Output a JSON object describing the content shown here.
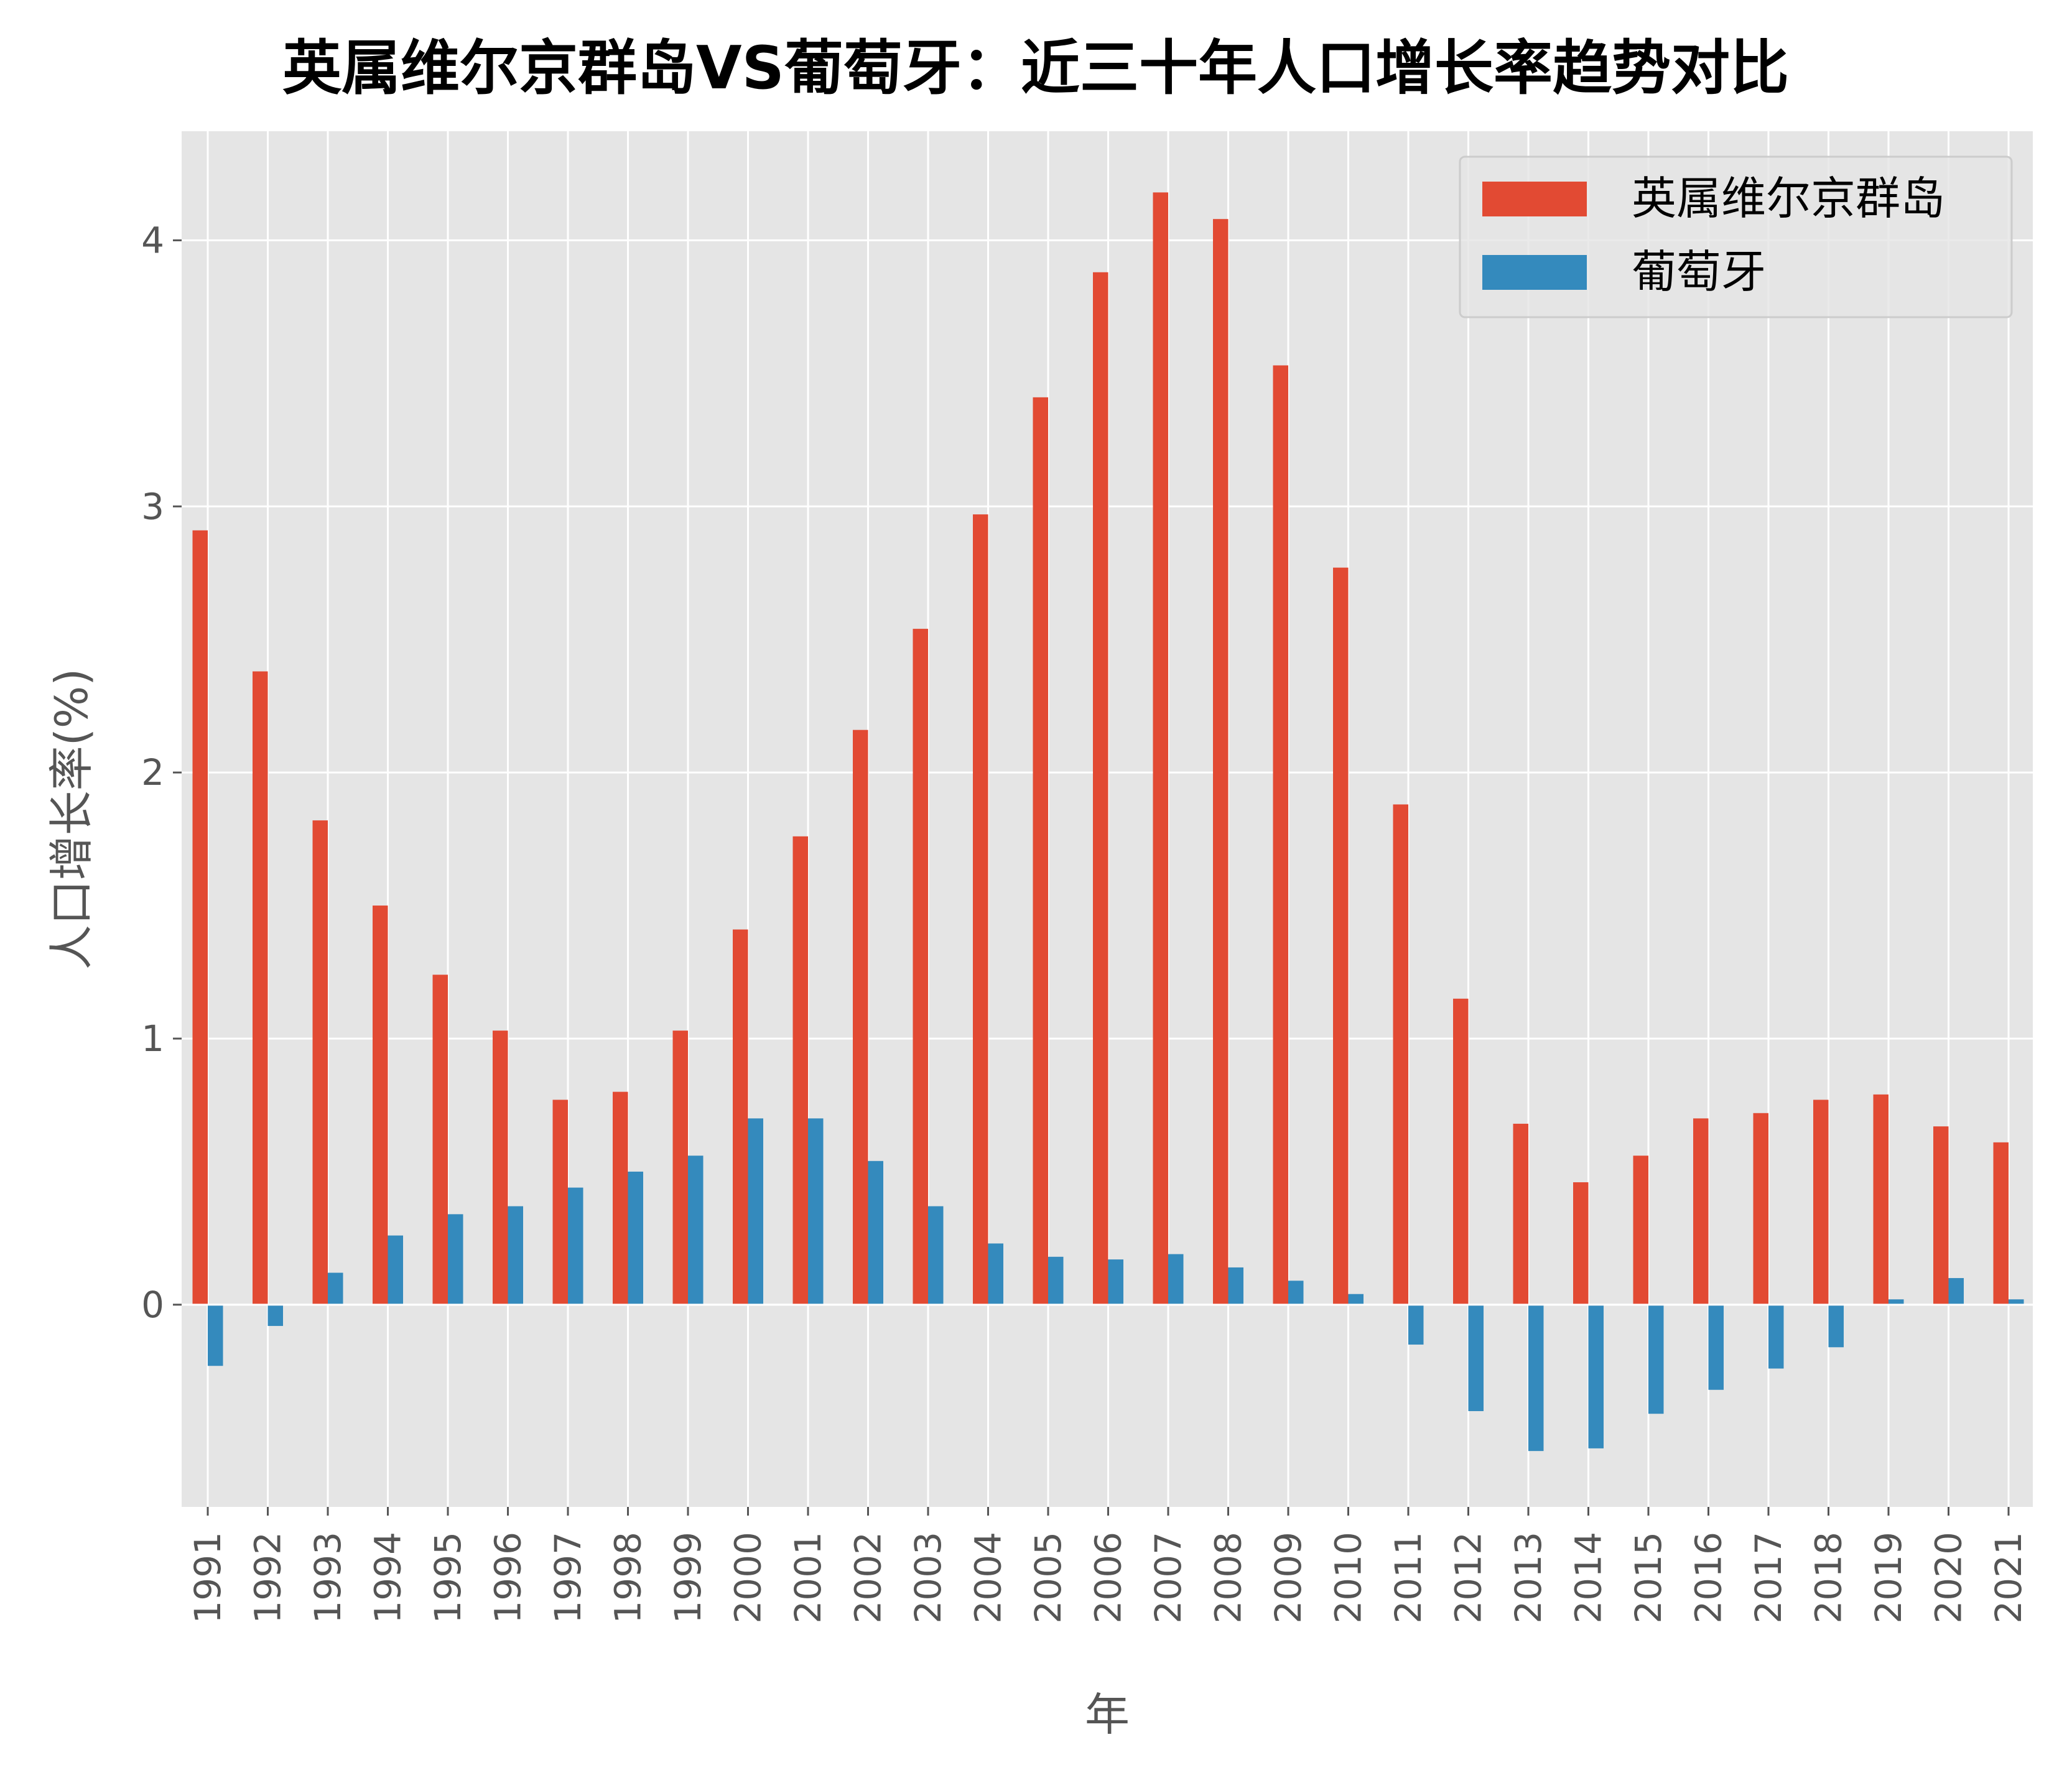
{
  "chart_data": {
    "type": "bar",
    "title": "英属维尔京群岛VS葡萄牙：近三十年人口增长率趋势对比",
    "xlabel": "年",
    "ylabel": "人口增长率(%)",
    "categories": [
      "1991",
      "1992",
      "1993",
      "1994",
      "1995",
      "1996",
      "1997",
      "1998",
      "1999",
      "2000",
      "2001",
      "2002",
      "2003",
      "2004",
      "2005",
      "2006",
      "2007",
      "2008",
      "2009",
      "2010",
      "2011",
      "2012",
      "2013",
      "2014",
      "2015",
      "2016",
      "2017",
      "2018",
      "2019",
      "2020",
      "2021"
    ],
    "series": [
      {
        "name": "英属维尔京群岛",
        "color": "#E24A33",
        "values": [
          2.91,
          2.38,
          1.82,
          1.5,
          1.24,
          1.03,
          0.77,
          0.8,
          1.03,
          1.41,
          1.76,
          2.16,
          2.54,
          2.97,
          3.41,
          3.88,
          4.18,
          4.08,
          3.53,
          2.77,
          1.88,
          1.15,
          0.68,
          0.46,
          0.56,
          0.7,
          0.72,
          0.77,
          0.79,
          0.67,
          0.61
        ]
      },
      {
        "name": "葡萄牙",
        "color": "#348ABD",
        "values": [
          -0.23,
          -0.08,
          0.12,
          0.26,
          0.34,
          0.37,
          0.44,
          0.5,
          0.56,
          0.7,
          0.7,
          0.54,
          0.37,
          0.23,
          0.18,
          0.17,
          0.19,
          0.14,
          0.09,
          0.04,
          -0.15,
          -0.4,
          -0.55,
          -0.54,
          -0.41,
          -0.32,
          -0.24,
          -0.16,
          0.02,
          0.1,
          0.02
        ]
      }
    ],
    "ylim": [
      -0.76,
      4.41
    ],
    "yticks": [
      0,
      1,
      2,
      3,
      4
    ],
    "grid": true,
    "legend_position": "upper right",
    "style": "ggplot"
  }
}
